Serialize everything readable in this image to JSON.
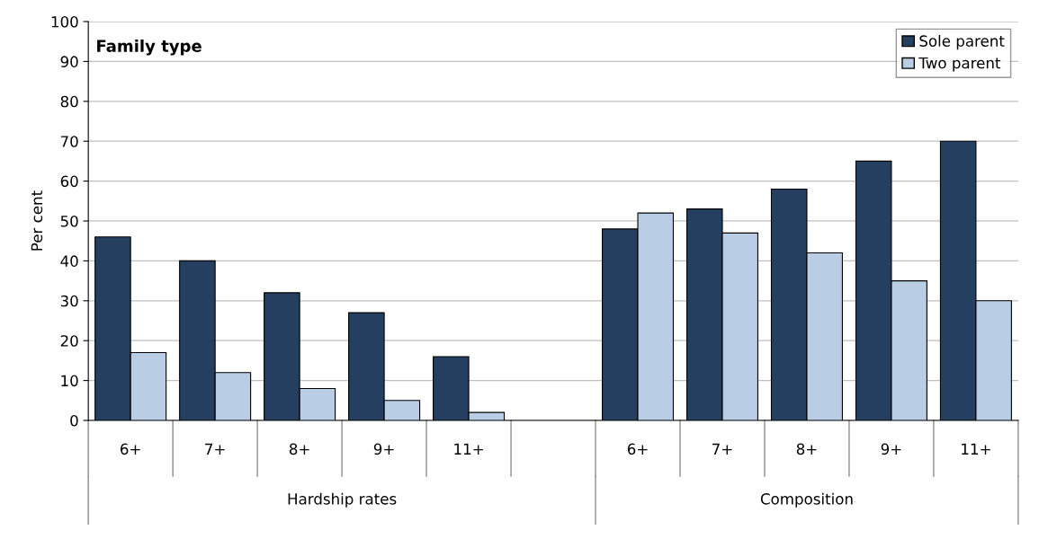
{
  "chart_data": {
    "type": "bar",
    "title": "Family type",
    "ylabel": "Per cent",
    "categories": [
      "6+",
      "7+",
      "8+",
      "9+",
      "11+",
      null,
      "6+",
      "7+",
      "8+",
      "9+",
      "11+"
    ],
    "series": [
      {
        "name": "Sole parent",
        "color": "#243f60",
        "values": [
          46,
          40,
          32,
          27,
          16,
          null,
          48,
          53,
          58,
          65,
          70
        ]
      },
      {
        "name": "Two parent",
        "color": "#b9cde5",
        "values": [
          17,
          12,
          8,
          5,
          2,
          null,
          52,
          47,
          42,
          35,
          30
        ]
      }
    ],
    "annotations": [
      "Hardship rates",
      "Composition"
    ],
    "ylim": [
      0,
      100
    ],
    "yticks": [
      0,
      10,
      20,
      30,
      40,
      50,
      60,
      70,
      80,
      90,
      100
    ],
    "grid": "y",
    "legend": "top right"
  }
}
